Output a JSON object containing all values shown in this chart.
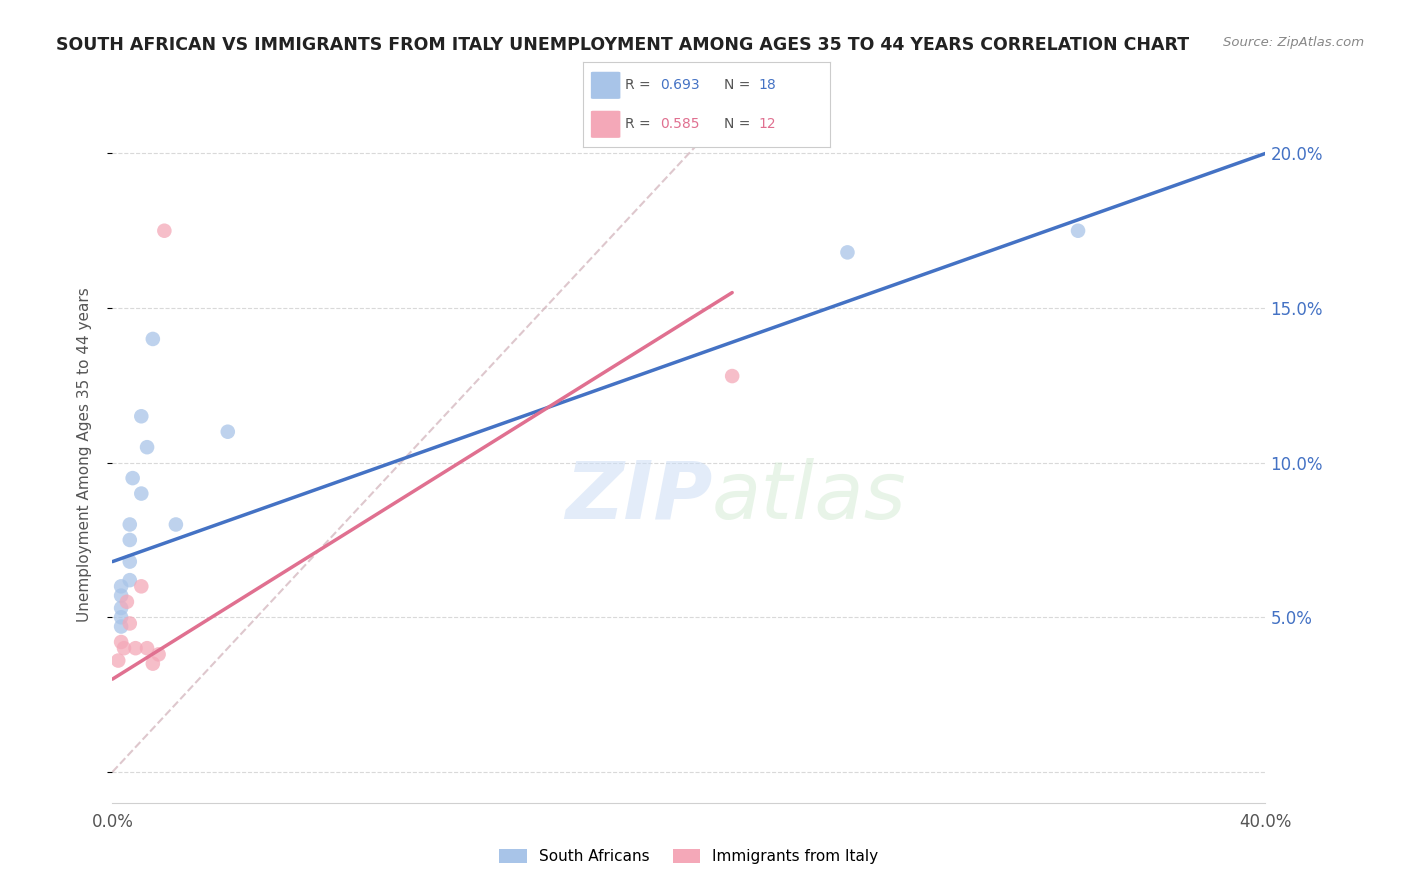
{
  "title": "SOUTH AFRICAN VS IMMIGRANTS FROM ITALY UNEMPLOYMENT AMONG AGES 35 TO 44 YEARS CORRELATION CHART",
  "source": "Source: ZipAtlas.com",
  "ylabel": "Unemployment Among Ages 35 to 44 years",
  "xlim": [
    0.0,
    0.4
  ],
  "ylim": [
    -0.01,
    0.215
  ],
  "x_ticks": [
    0.0,
    0.05,
    0.1,
    0.15,
    0.2,
    0.25,
    0.3,
    0.35,
    0.4
  ],
  "x_tick_labels": [
    "0.0%",
    "",
    "",
    "",
    "",
    "",
    "",
    "",
    "40.0%"
  ],
  "y_ticks_right": [
    0.0,
    0.05,
    0.1,
    0.15,
    0.2
  ],
  "y_tick_labels_right": [
    "",
    "5.0%",
    "10.0%",
    "15.0%",
    "20.0%"
  ],
  "south_africans_x": [
    0.003,
    0.003,
    0.003,
    0.003,
    0.003,
    0.006,
    0.006,
    0.006,
    0.006,
    0.007,
    0.01,
    0.01,
    0.012,
    0.014,
    0.022,
    0.04,
    0.255,
    0.335
  ],
  "south_africans_y": [
    0.047,
    0.05,
    0.053,
    0.057,
    0.06,
    0.062,
    0.068,
    0.075,
    0.08,
    0.095,
    0.09,
    0.115,
    0.105,
    0.14,
    0.08,
    0.11,
    0.168,
    0.175
  ],
  "immigrants_x": [
    0.002,
    0.003,
    0.004,
    0.005,
    0.006,
    0.008,
    0.01,
    0.012,
    0.014,
    0.016,
    0.018,
    0.215
  ],
  "immigrants_y": [
    0.036,
    0.042,
    0.04,
    0.055,
    0.048,
    0.04,
    0.06,
    0.04,
    0.035,
    0.038,
    0.175,
    0.128
  ],
  "sa_line_x": [
    0.0,
    0.4
  ],
  "sa_line_y": [
    0.068,
    0.2
  ],
  "imm_line_x": [
    0.0,
    0.215
  ],
  "imm_line_y": [
    0.03,
    0.155
  ],
  "diag_line_x": [
    0.0,
    0.215
  ],
  "diag_line_y": [
    0.0,
    0.215
  ],
  "sa_color": "#a8c4e8",
  "imm_color": "#f4a8b8",
  "sa_line_color": "#4472c4",
  "imm_line_color": "#e07090",
  "diag_line_color": "#d0b0b8",
  "watermark_zip": "ZIP",
  "watermark_atlas": "atlas",
  "background_color": "#ffffff",
  "grid_color": "#d0d0d0",
  "title_color": "#222222",
  "source_color": "#888888",
  "ylabel_color": "#555555",
  "right_tick_color": "#4472c4",
  "bottom_tick_color": "#555555",
  "legend_border_color": "#cccccc",
  "sa_r_val": "0.693",
  "sa_n_val": "18",
  "imm_r_val": "0.585",
  "imm_n_val": "12",
  "r_label_color": "#555555",
  "sa_rv_color": "#4472c4",
  "imm_rv_color": "#e07090"
}
